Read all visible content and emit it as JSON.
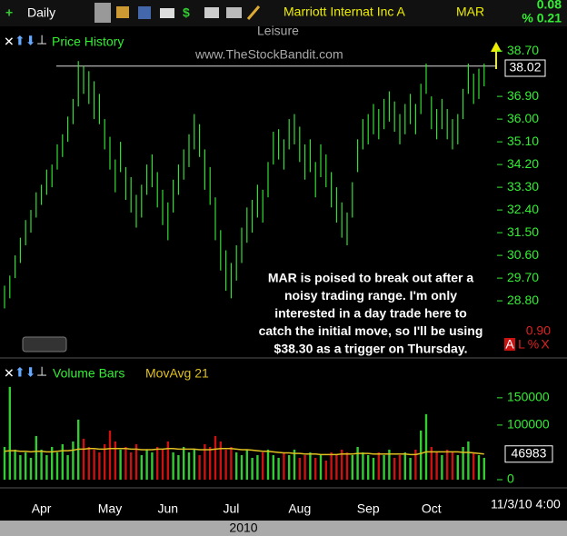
{
  "toolbar": {
    "interval": "Daily",
    "company": "Marriott Internat Inc A",
    "symbol": "MAR",
    "change": "0.08",
    "change_pct": "% 0.21"
  },
  "header": {
    "industry": "Leisure",
    "watermark": "www.TheStockBandit.com",
    "panel_value": "0.90",
    "panel_buttons": [
      "A",
      "L",
      "%",
      "X"
    ]
  },
  "annotation": [
    "MAR is poised to break out after a",
    "noisy trading range. I'm only",
    "interested in a day trade here to",
    "catch the initial move, so I'll be using",
    "$38.30 as a trigger on Thursday."
  ],
  "chart_data": [
    {
      "type": "hilo",
      "ylim": [
        26.68,
        39.46
      ],
      "yticks": [
        {
          "value": 38.7,
          "label": "38.70"
        },
        {
          "value": 36.9,
          "label": "36.90"
        },
        {
          "value": 36,
          "label": "36.00"
        },
        {
          "value": 35.1,
          "label": "35.10"
        },
        {
          "value": 34.2,
          "label": "34.20"
        },
        {
          "value": 33.3,
          "label": "33.30"
        },
        {
          "value": 32.4,
          "label": "32.40"
        },
        {
          "value": 31.5,
          "label": "31.50"
        },
        {
          "value": 30.6,
          "label": "30.60"
        },
        {
          "value": 29.7,
          "label": "29.70"
        },
        {
          "value": 28.8,
          "label": "28.80"
        }
      ],
      "last_price": 38.02,
      "resistance": 38.1,
      "series": [
        {
          "name": "Price History",
          "color": "#33dd33",
          "high": [
            29.4,
            29.8,
            30.6,
            31.3,
            32.0,
            32.4,
            33.1,
            33.4,
            34.0,
            34.2,
            35.0,
            35.4,
            36.1,
            36.8,
            38.3,
            38.1,
            37.9,
            37.5,
            37.0,
            36.0,
            35.3,
            34.4,
            35.1,
            34.1,
            33.7,
            33.0,
            33.4,
            34.2,
            34.6,
            33.9,
            33.2,
            32.7,
            33.6,
            34.2,
            34.8,
            35.4,
            36.2,
            35.8,
            34.8,
            34.1,
            32.9,
            31.6,
            30.8,
            30.3,
            31.0,
            31.7,
            32.5,
            32.8,
            33.4,
            33.2,
            34.3,
            35.5,
            35.6,
            35.2,
            36.0,
            36.2,
            35.7,
            35.0,
            35.2,
            34.3,
            35.0,
            34.6,
            33.9,
            33.3,
            32.7,
            32.3,
            33.5,
            35.2,
            36.0,
            36.2,
            36.6,
            36.4,
            36.8,
            37.1,
            36.7,
            36.2,
            36.6,
            37.0,
            36.6,
            37.4,
            38.2,
            36.9,
            36.4,
            36.8,
            36.4,
            36.0,
            36.2,
            37.2,
            38.2,
            37.8,
            38.0,
            38.2
          ],
          "low": [
            28.5,
            28.9,
            29.7,
            30.3,
            31.0,
            31.5,
            32.1,
            32.6,
            33.0,
            33.3,
            34.0,
            34.5,
            35.1,
            35.8,
            36.5,
            37.0,
            36.6,
            36.0,
            35.8,
            34.8,
            34.0,
            33.1,
            33.9,
            32.8,
            32.3,
            31.7,
            32.1,
            33.0,
            33.3,
            32.5,
            31.8,
            31.2,
            32.3,
            33.0,
            33.6,
            34.1,
            34.8,
            34.5,
            33.2,
            32.6,
            31.2,
            30.0,
            29.2,
            28.9,
            29.6,
            30.3,
            31.1,
            31.5,
            32.1,
            31.9,
            32.9,
            34.2,
            34.4,
            34.0,
            34.8,
            35.0,
            34.3,
            33.6,
            33.9,
            32.9,
            33.7,
            33.3,
            32.5,
            31.9,
            31.3,
            31.0,
            32.1,
            33.9,
            34.8,
            35.0,
            35.4,
            35.2,
            35.6,
            35.9,
            35.5,
            35.0,
            35.4,
            35.8,
            35.4,
            36.2,
            37.0,
            35.6,
            35.2,
            35.6,
            35.2,
            34.8,
            35.0,
            36.0,
            37.0,
            36.6,
            36.8,
            37.3
          ]
        }
      ]
    },
    {
      "type": "bar",
      "ylim": [
        0,
        213000
      ],
      "yticks": [
        0,
        100000,
        150000
      ],
      "categories": [
        null,
        null,
        null,
        null,
        null,
        null,
        null,
        "Apr",
        null,
        null,
        null,
        null,
        null,
        null,
        null,
        null,
        null,
        null,
        null,
        null,
        "May",
        null,
        null,
        null,
        null,
        null,
        null,
        null,
        null,
        null,
        null,
        "Jun",
        null,
        null,
        null,
        null,
        null,
        null,
        null,
        null,
        null,
        null,
        null,
        "Jul",
        null,
        null,
        null,
        null,
        null,
        null,
        null,
        null,
        null,
        null,
        null,
        null,
        "Aug",
        null,
        null,
        null,
        null,
        null,
        null,
        null,
        null,
        null,
        null,
        null,
        null,
        "Sep",
        null,
        null,
        null,
        null,
        null,
        null,
        null,
        null,
        null,
        null,
        null,
        "Oct",
        null,
        null,
        null,
        null,
        null,
        null,
        null,
        null,
        null,
        null
      ],
      "date": "11/3/10 4:00",
      "year": "2010",
      "series": [
        {
          "name": "Volume Bars",
          "color": "#33cc33",
          "down_color": "#cc1111",
          "values": [
            60000,
            170000,
            55000,
            45000,
            50000,
            40000,
            80000,
            55000,
            45000,
            60000,
            50000,
            65000,
            45000,
            70000,
            110000,
            75000,
            60000,
            55000,
            50000,
            65000,
            90000,
            70000,
            55000,
            60000,
            50000,
            65000,
            45000,
            55000,
            50000,
            60000,
            55000,
            70000,
            50000,
            45000,
            60000,
            50000,
            55000,
            45000,
            65000,
            60000,
            80000,
            70000,
            55000,
            60000,
            50000,
            45000,
            55000,
            40000,
            45000,
            50000,
            55000,
            45000,
            40000,
            50000,
            45000,
            55000,
            40000,
            45000,
            50000,
            40000,
            45000,
            35000,
            50000,
            45000,
            55000,
            50000,
            45000,
            60000,
            50000,
            45000,
            40000,
            50000,
            45000,
            55000,
            40000,
            45000,
            50000,
            40000,
            55000,
            90000,
            120000,
            60000,
            50000,
            45000,
            55000,
            50000,
            45000,
            60000,
            70000,
            50000,
            45000,
            40000
          ]
        },
        {
          "name": "MovAvg 21",
          "color": "#e0c020",
          "values": [
            52000,
            53000,
            53000,
            52000,
            52000,
            51000,
            52000,
            52000,
            51000,
            51000,
            52000,
            53000,
            53000,
            54000,
            56000,
            56000,
            57000,
            57000,
            56000,
            56000,
            57000,
            57000,
            57000,
            57000,
            56000,
            56000,
            55000,
            55000,
            55000,
            56000,
            56000,
            57000,
            57000,
            56000,
            56000,
            56000,
            56000,
            55000,
            55000,
            55000,
            56000,
            57000,
            57000,
            57000,
            56000,
            55000,
            55000,
            54000,
            53000,
            52000,
            52000,
            51000,
            50000,
            49000,
            49000,
            48000,
            48000,
            47000,
            47000,
            47000,
            46000,
            46000,
            46000,
            46000,
            47000,
            47000,
            47000,
            48000,
            48000,
            48000,
            47000,
            47000,
            47000,
            47000,
            47000,
            47000,
            47000,
            46000,
            46000,
            48000,
            51000,
            51000,
            51000,
            51000,
            51000,
            51000,
            51000,
            50000,
            50000,
            49000,
            48000,
            46983
          ]
        }
      ]
    }
  ]
}
